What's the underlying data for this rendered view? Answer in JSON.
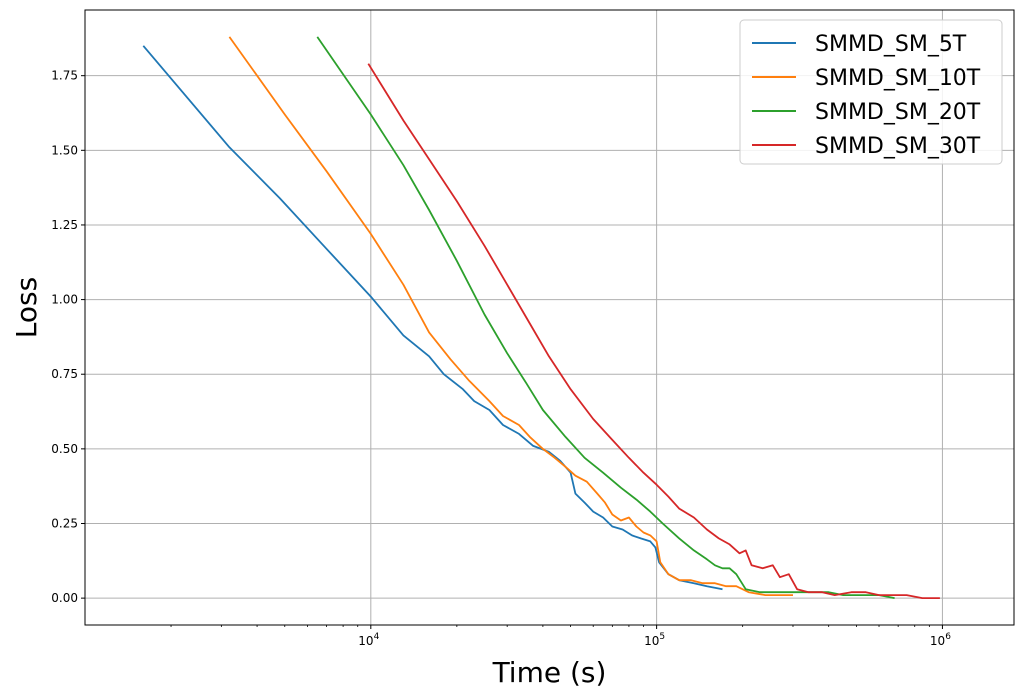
{
  "chart_data": {
    "type": "line",
    "xscale": "log",
    "xlabel": "Time (s)",
    "ylabel": "Loss",
    "xlim": [
      1000,
      1780000
    ],
    "ylim": [
      -0.09,
      1.97
    ],
    "grid": true,
    "legend_position": "top-right",
    "x_ticks": [
      {
        "value": 10000,
        "base": "10",
        "exp": "4"
      },
      {
        "value": 100000,
        "base": "10",
        "exp": "5"
      },
      {
        "value": 1000000,
        "base": "10",
        "exp": "6"
      }
    ],
    "y_ticks": [
      "0.00",
      "0.25",
      "0.50",
      "0.75",
      "1.00",
      "1.25",
      "1.50",
      "1.75"
    ],
    "series": [
      {
        "name": "SMMD_SM_5T",
        "color": "#1f77b4",
        "points": [
          [
            1600,
            1.85
          ],
          [
            3200,
            1.51
          ],
          [
            4800,
            1.34
          ],
          [
            7000,
            1.17
          ],
          [
            10000,
            1.01
          ],
          [
            13000,
            0.88
          ],
          [
            16000,
            0.81
          ],
          [
            18000,
            0.75
          ],
          [
            21000,
            0.7
          ],
          [
            23000,
            0.66
          ],
          [
            26000,
            0.63
          ],
          [
            29000,
            0.58
          ],
          [
            33000,
            0.55
          ],
          [
            37000,
            0.51
          ],
          [
            42000,
            0.49
          ],
          [
            46000,
            0.46
          ],
          [
            50000,
            0.42
          ],
          [
            52000,
            0.35
          ],
          [
            56000,
            0.32
          ],
          [
            60000,
            0.29
          ],
          [
            65000,
            0.27
          ],
          [
            70000,
            0.24
          ],
          [
            76000,
            0.23
          ],
          [
            82000,
            0.21
          ],
          [
            88000,
            0.2
          ],
          [
            95000,
            0.19
          ],
          [
            99000,
            0.17
          ],
          [
            102000,
            0.12
          ],
          [
            110000,
            0.08
          ],
          [
            120000,
            0.06
          ],
          [
            135000,
            0.05
          ],
          [
            150000,
            0.04
          ],
          [
            170000,
            0.03
          ]
        ]
      },
      {
        "name": "SMMD_SM_10T",
        "color": "#ff7f0e",
        "points": [
          [
            3200,
            1.88
          ],
          [
            5000,
            1.62
          ],
          [
            7000,
            1.43
          ],
          [
            10000,
            1.22
          ],
          [
            13000,
            1.05
          ],
          [
            16000,
            0.89
          ],
          [
            19000,
            0.8
          ],
          [
            22000,
            0.73
          ],
          [
            26000,
            0.66
          ],
          [
            29000,
            0.61
          ],
          [
            33000,
            0.58
          ],
          [
            36000,
            0.54
          ],
          [
            40000,
            0.5
          ],
          [
            44000,
            0.47
          ],
          [
            48000,
            0.44
          ],
          [
            52000,
            0.41
          ],
          [
            57000,
            0.39
          ],
          [
            62000,
            0.35
          ],
          [
            66000,
            0.32
          ],
          [
            70000,
            0.28
          ],
          [
            75000,
            0.26
          ],
          [
            80000,
            0.27
          ],
          [
            85000,
            0.24
          ],
          [
            90000,
            0.22
          ],
          [
            95000,
            0.21
          ],
          [
            100000,
            0.19
          ],
          [
            103000,
            0.12
          ],
          [
            110000,
            0.08
          ],
          [
            120000,
            0.06
          ],
          [
            132000,
            0.06
          ],
          [
            145000,
            0.05
          ],
          [
            160000,
            0.05
          ],
          [
            175000,
            0.04
          ],
          [
            190000,
            0.04
          ],
          [
            210000,
            0.02
          ],
          [
            240000,
            0.01
          ],
          [
            300000,
            0.01
          ]
        ]
      },
      {
        "name": "SMMD_SM_20T",
        "color": "#2ca02c",
        "points": [
          [
            6500,
            1.88
          ],
          [
            10000,
            1.62
          ],
          [
            13000,
            1.45
          ],
          [
            16000,
            1.3
          ],
          [
            20000,
            1.13
          ],
          [
            25000,
            0.95
          ],
          [
            30000,
            0.82
          ],
          [
            35000,
            0.72
          ],
          [
            40000,
            0.63
          ],
          [
            48000,
            0.54
          ],
          [
            56000,
            0.47
          ],
          [
            65000,
            0.42
          ],
          [
            75000,
            0.37
          ],
          [
            85000,
            0.33
          ],
          [
            95000,
            0.29
          ],
          [
            105000,
            0.25
          ],
          [
            120000,
            0.2
          ],
          [
            135000,
            0.16
          ],
          [
            150000,
            0.13
          ],
          [
            160000,
            0.11
          ],
          [
            170000,
            0.1
          ],
          [
            180000,
            0.1
          ],
          [
            190000,
            0.08
          ],
          [
            205000,
            0.03
          ],
          [
            230000,
            0.02
          ],
          [
            260000,
            0.02
          ],
          [
            300000,
            0.02
          ],
          [
            350000,
            0.02
          ],
          [
            400000,
            0.02
          ],
          [
            450000,
            0.01
          ],
          [
            520000,
            0.01
          ],
          [
            600000,
            0.01
          ],
          [
            680000,
            0.0
          ]
        ]
      },
      {
        "name": "SMMD_SM_30T",
        "color": "#d62728",
        "points": [
          [
            9800,
            1.79
          ],
          [
            13000,
            1.6
          ],
          [
            16000,
            1.47
          ],
          [
            20000,
            1.33
          ],
          [
            25000,
            1.18
          ],
          [
            30000,
            1.05
          ],
          [
            36000,
            0.92
          ],
          [
            42000,
            0.81
          ],
          [
            50000,
            0.7
          ],
          [
            60000,
            0.6
          ],
          [
            70000,
            0.53
          ],
          [
            80000,
            0.47
          ],
          [
            90000,
            0.42
          ],
          [
            100000,
            0.38
          ],
          [
            110000,
            0.34
          ],
          [
            120000,
            0.3
          ],
          [
            135000,
            0.27
          ],
          [
            150000,
            0.23
          ],
          [
            165000,
            0.2
          ],
          [
            180000,
            0.18
          ],
          [
            195000,
            0.15
          ],
          [
            205000,
            0.16
          ],
          [
            215000,
            0.11
          ],
          [
            235000,
            0.1
          ],
          [
            255000,
            0.11
          ],
          [
            270000,
            0.07
          ],
          [
            290000,
            0.08
          ],
          [
            310000,
            0.03
          ],
          [
            340000,
            0.02
          ],
          [
            380000,
            0.02
          ],
          [
            420000,
            0.01
          ],
          [
            480000,
            0.02
          ],
          [
            540000,
            0.02
          ],
          [
            600000,
            0.01
          ],
          [
            660000,
            0.01
          ],
          [
            750000,
            0.01
          ],
          [
            850000,
            0.0
          ],
          [
            980000,
            0.0
          ]
        ]
      }
    ]
  }
}
